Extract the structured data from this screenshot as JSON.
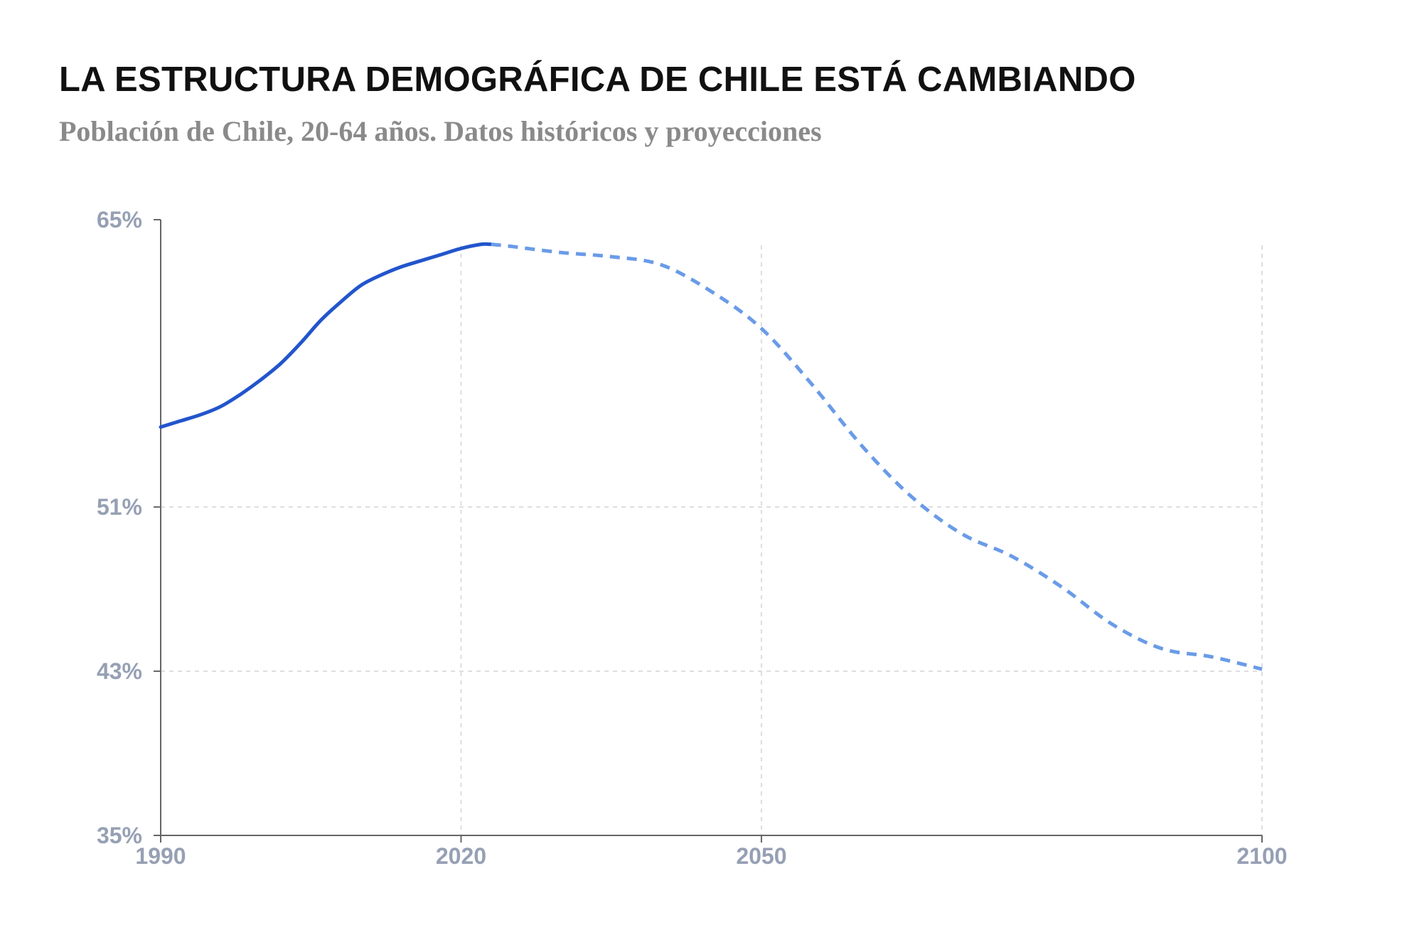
{
  "title": "LA ESTRUCTURA DEMOGRÁFICA DE CHILE ESTÁ CAMBIANDO",
  "subtitle": "Población de Chile, 20-64 años. Datos históricos y proyecciones",
  "colors": {
    "historical": "#2255cc",
    "projection": "#6a9be8",
    "axis": "#666666",
    "grid": "#dddddd",
    "tick_label": "#96a0b4"
  },
  "chart_data": {
    "type": "line",
    "title": "LA ESTRUCTURA DEMOGRÁFICA DE CHILE ESTÁ CAMBIANDO",
    "subtitle": "Población de Chile, 20-64 años. Datos históricos y proyecciones",
    "xlabel": "",
    "ylabel": "",
    "xlim": [
      1990,
      2100
    ],
    "ylim": [
      35,
      65
    ],
    "x_ticks": [
      1990,
      2020,
      2050,
      2100
    ],
    "y_ticks": [
      35,
      43,
      51,
      65
    ],
    "x_tick_labels": [
      "1990",
      "2020",
      "2050",
      "2100"
    ],
    "y_tick_labels": [
      "35%",
      "43%",
      "51%",
      "65%"
    ],
    "grid": "dashed, at tick positions",
    "legend": "none",
    "series": [
      {
        "style": "solid",
        "x": [
          1990,
          1992,
          1994,
          1996,
          1998,
          2000,
          2002,
          2004,
          2006,
          2008,
          2010,
          2012,
          2014,
          2016,
          2018,
          2020,
          2022,
          2023
        ],
        "values": [
          54.9,
          55.2,
          55.5,
          55.9,
          56.5,
          57.2,
          58.0,
          59.0,
          60.1,
          61.0,
          61.8,
          62.3,
          62.7,
          63.0,
          63.3,
          63.6,
          63.8,
          63.8
        ]
      },
      {
        "style": "dashed",
        "x": [
          2023,
          2025,
          2030,
          2035,
          2040,
          2045,
          2050,
          2055,
          2060,
          2065,
          2070,
          2075,
          2080,
          2085,
          2090,
          2095,
          2100
        ],
        "values": [
          63.8,
          63.7,
          63.4,
          63.2,
          62.8,
          61.5,
          59.7,
          57.0,
          54.0,
          51.5,
          49.7,
          48.6,
          47.1,
          45.3,
          44.1,
          43.7,
          43.1
        ]
      }
    ]
  }
}
